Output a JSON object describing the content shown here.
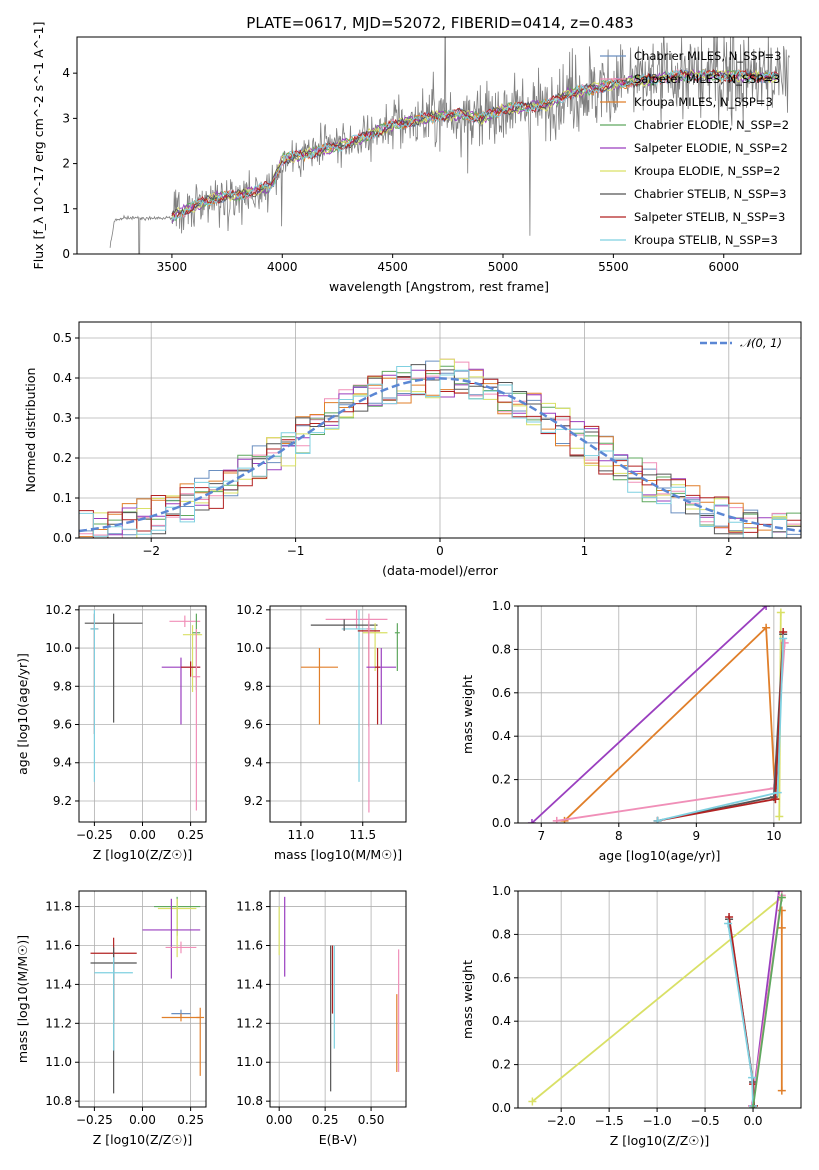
{
  "figure_title": "PLATE=0617, MJD=52072, FIBERID=0414, z=0.483",
  "chart_data": [
    {
      "id": "spectrum",
      "type": "line",
      "xlabel": "wavelength [Angstrom, rest frame]",
      "ylabel": "Flux [f_λ 10^-17 erg cm^-2 s^-1 A^-1]",
      "xlim": [
        3070,
        6350
      ],
      "ylim": [
        0,
        4.8
      ],
      "xticks": [
        3500,
        4000,
        4500,
        5000,
        5500,
        6000
      ],
      "yticks": [
        0,
        1,
        2,
        3,
        4
      ],
      "legend_position": "top-right",
      "series": [
        {
          "name": "Chabrier MILES, N_SSP=3",
          "color": "#6a8fc0"
        },
        {
          "name": "Salpeter MILES, N_SSP=3",
          "color": "#f08fb8"
        },
        {
          "name": "Kroupa MILES, N_SSP=3",
          "color": "#e07f2a"
        },
        {
          "name": "Chabrier ELODIE, N_SSP=2",
          "color": "#5fa85f"
        },
        {
          "name": "Salpeter ELODIE, N_SSP=2",
          "color": "#9a3fbf"
        },
        {
          "name": "Kroupa ELODIE, N_SSP=2",
          "color": "#d9e066"
        },
        {
          "name": "Chabrier STELIB, N_SSP=3",
          "color": "#555555"
        },
        {
          "name": "Salpeter STELIB, N_SSP=3",
          "color": "#b22222"
        },
        {
          "name": "Kroupa STELIB, N_SSP=3",
          "color": "#7fd0e0"
        }
      ],
      "observed_color": "#7f7f7f",
      "observed_range": [
        3220,
        6300
      ],
      "model_range": [
        3500,
        6250
      ],
      "continuum_nodes": {
        "x": [
          3220,
          3240,
          3300,
          3500,
          3550,
          3700,
          3800,
          3950,
          4000,
          4100,
          4300,
          4500,
          4700,
          4800,
          4900,
          5000,
          5200,
          5300,
          5500,
          5800,
          6000,
          6300
        ],
        "y": [
          0.15,
          0.75,
          0.8,
          0.8,
          0.95,
          1.25,
          1.3,
          1.5,
          2.1,
          2.2,
          2.45,
          2.85,
          3.05,
          3.1,
          3.0,
          3.2,
          3.3,
          3.55,
          3.75,
          3.95,
          3.95,
          3.9
        ]
      }
    },
    {
      "id": "residuals",
      "type": "line",
      "xlabel": "(data-model)/error",
      "ylabel": "Normed distribution",
      "xlim": [
        -2.5,
        2.5
      ],
      "ylim": [
        0,
        0.54
      ],
      "xticks": [
        -2,
        -1,
        0,
        1,
        2
      ],
      "yticks": [
        0.0,
        0.1,
        0.2,
        0.3,
        0.4,
        0.5
      ],
      "grid": true,
      "legend_position": "top-right",
      "gaussian": {
        "name": "𝒩(0, 1)",
        "color": "#5b87d4",
        "mean": 0,
        "sigma": 1
      },
      "hist_bin_width": 0.1
    },
    {
      "id": "age_vs_Z",
      "type": "scatter",
      "xlabel": "Z [log10(Z/Z☉)]",
      "ylabel": "age [log10(age/yr)]",
      "xlim": [
        -0.33,
        0.33
      ],
      "ylim": [
        9.09,
        10.22
      ],
      "xticks": [
        -0.25,
        0.0,
        0.25
      ],
      "yticks": [
        9.2,
        9.4,
        9.6,
        9.8,
        10.0,
        10.2
      ],
      "grid": true,
      "points": [
        {
          "x": -0.15,
          "y": 10.13,
          "xerr": 0.15,
          "yerr": [
            0.52,
            0.05
          ],
          "color": "#555555"
        },
        {
          "x": -0.25,
          "y": 10.1,
          "xerr": 0.02,
          "yerr": [
            0.55,
            0.08
          ],
          "color": "#b22222"
        },
        {
          "x": -0.25,
          "y": 10.1,
          "xerr": 0.02,
          "yerr": [
            0.8,
            0.1
          ],
          "color": "#7fd0e0"
        },
        {
          "x": 0.22,
          "y": 10.14,
          "xerr": 0.08,
          "yerr": [
            0.03,
            0.03
          ],
          "color": "#f08fb8"
        },
        {
          "x": 0.26,
          "y": 10.07,
          "xerr": 0.05,
          "yerr": [
            0.3,
            0.05
          ],
          "color": "#d9e066"
        },
        {
          "x": 0.28,
          "y": 10.08,
          "xerr": 0.02,
          "yerr": [
            0.3,
            0.1
          ],
          "color": "#5fa85f"
        },
        {
          "x": 0.2,
          "y": 9.9,
          "xerr": 0.1,
          "yerr": [
            0.3,
            0.05
          ],
          "color": "#9a3fbf"
        },
        {
          "x": 0.25,
          "y": 9.9,
          "xerr": 0.05,
          "yerr": [
            0.05,
            0.03
          ],
          "color": "#b22222"
        },
        {
          "x": 0.28,
          "y": 9.85,
          "xerr": 0.02,
          "yerr": [
            0.7,
            0.25
          ],
          "color": "#f08fb8"
        }
      ]
    },
    {
      "id": "age_vs_mass",
      "type": "scatter",
      "xlabel": "mass [log10(M/M☉)]",
      "ylabel": "",
      "xlim": [
        10.75,
        11.85
      ],
      "ylim": [
        9.09,
        10.22
      ],
      "xticks": [
        11.0,
        11.5
      ],
      "yticks": [
        9.2,
        9.4,
        9.6,
        9.8,
        10.0,
        10.2
      ],
      "grid": true,
      "points": [
        {
          "x": 11.45,
          "y": 10.15,
          "xerr": 0.25,
          "yerr": [
            0.05,
            0.05
          ],
          "color": "#f08fb8"
        },
        {
          "x": 11.47,
          "y": 10.1,
          "xerr": 0.14,
          "yerr": [
            0.8,
            0.1
          ],
          "color": "#7fd0e0"
        },
        {
          "x": 11.35,
          "y": 10.12,
          "xerr": 0.27,
          "yerr": [
            0.03,
            0.03
          ],
          "color": "#555555"
        },
        {
          "x": 11.6,
          "y": 10.08,
          "xerr": 0.1,
          "yerr": [
            0.2,
            0.05
          ],
          "color": "#d9e066"
        },
        {
          "x": 11.78,
          "y": 10.08,
          "xerr": 0.02,
          "yerr": [
            0.2,
            0.05
          ],
          "color": "#5fa85f"
        },
        {
          "x": 11.55,
          "y": 10.09,
          "xerr": 0.09,
          "yerr": [
            0.5,
            0.05
          ],
          "color": "#b22222"
        },
        {
          "x": 11.55,
          "y": 10.1,
          "xerr": 0.02,
          "yerr": [
            0.96,
            0.08
          ],
          "color": "#f08fb8"
        },
        {
          "x": 11.15,
          "y": 9.9,
          "xerr": 0.15,
          "yerr": [
            0.3,
            0.1
          ],
          "color": "#e07f2a"
        },
        {
          "x": 11.65,
          "y": 9.9,
          "xerr": 0.12,
          "yerr": [
            0.3,
            0.1
          ],
          "color": "#9a3fbf"
        },
        {
          "x": 11.62,
          "y": 9.9,
          "xerr": 0.02,
          "yerr": [
            0.3,
            0.1
          ],
          "color": "#b22222"
        }
      ]
    },
    {
      "id": "weight_vs_age",
      "type": "line",
      "xlabel": "age [log10(age/yr)]",
      "ylabel": "mass weight",
      "xlim": [
        6.7,
        10.35
      ],
      "ylim": [
        0,
        1.0
      ],
      "xticks": [
        7,
        8,
        9,
        10
      ],
      "yticks": [
        0.0,
        0.2,
        0.4,
        0.6,
        0.8,
        1.0
      ],
      "grid": true,
      "series": [
        {
          "color": "#9a3fbf",
          "x": [
            6.88,
            9.9
          ],
          "y": [
            0.0,
            1.0
          ]
        },
        {
          "color": "#e07f2a",
          "x": [
            7.3,
            9.9,
            10.02
          ],
          "y": [
            0.01,
            0.9,
            0.11
          ]
        },
        {
          "color": "#d9e066",
          "x": [
            10.07,
            10.09
          ],
          "y": [
            0.03,
            0.97
          ]
        },
        {
          "color": "#f08fb8",
          "x": [
            7.2,
            10.0,
            10.14
          ],
          "y": [
            0.01,
            0.16,
            0.83
          ]
        },
        {
          "color": "#555555",
          "x": [
            8.5,
            10.0,
            10.12
          ],
          "y": [
            0.01,
            0.12,
            0.87
          ]
        },
        {
          "color": "#b22222",
          "x": [
            8.5,
            10.02,
            10.12
          ],
          "y": [
            0.01,
            0.11,
            0.88
          ]
        },
        {
          "color": "#7fd0e0",
          "x": [
            8.5,
            10.05,
            10.12
          ],
          "y": [
            0.01,
            0.14,
            0.85
          ]
        }
      ]
    },
    {
      "id": "mass_vs_Z",
      "type": "scatter",
      "xlabel": "Z [log10(Z/Z☉)]",
      "ylabel": "mass [log10(M/M☉)]",
      "xlim": [
        -0.33,
        0.33
      ],
      "ylim": [
        10.77,
        11.88
      ],
      "xticks": [
        -0.25,
        0.0,
        0.25
      ],
      "yticks": [
        10.8,
        11.0,
        11.2,
        11.4,
        11.6,
        11.8
      ],
      "grid": true,
      "points": [
        {
          "x": 0.18,
          "y": 11.8,
          "xerr": 0.12,
          "yerr": [
            0.15,
            0.05
          ],
          "color": "#5fa85f"
        },
        {
          "x": 0.18,
          "y": 11.79,
          "xerr": 0.1,
          "yerr": [
            0.25,
            0.05
          ],
          "color": "#d9e066"
        },
        {
          "x": 0.15,
          "y": 11.68,
          "xerr": 0.15,
          "yerr": [
            0.25,
            0.16
          ],
          "color": "#9a3fbf"
        },
        {
          "x": 0.2,
          "y": 11.59,
          "xerr": 0.08,
          "yerr": [
            0.03,
            0.03
          ],
          "color": "#f08fb8"
        },
        {
          "x": -0.15,
          "y": 11.56,
          "xerr": 0.12,
          "yerr": [
            0.35,
            0.08
          ],
          "color": "#b22222"
        },
        {
          "x": -0.15,
          "y": 11.51,
          "xerr": 0.12,
          "yerr": [
            0.67,
            0.08
          ],
          "color": "#555555"
        },
        {
          "x": -0.15,
          "y": 11.46,
          "xerr": 0.1,
          "yerr": [
            0.4,
            0.08
          ],
          "color": "#7fd0e0"
        },
        {
          "x": 0.2,
          "y": 11.25,
          "xerr": 0.05,
          "yerr": [
            0.02,
            0.02
          ],
          "color": "#6a8fc0"
        },
        {
          "x": 0.2,
          "y": 11.23,
          "xerr": 0.1,
          "yerr": [
            0.02,
            0.02
          ],
          "color": "#e07f2a"
        },
        {
          "x": 0.3,
          "y": 11.23,
          "xerr": 0.02,
          "yerr": [
            0.3,
            0.05
          ],
          "color": "#e07f2a"
        }
      ]
    },
    {
      "id": "mass_vs_EBV",
      "type": "scatter",
      "xlabel": "E(B-V)",
      "ylabel": "",
      "xlim": [
        -0.05,
        0.69
      ],
      "ylim": [
        10.77,
        11.88
      ],
      "xticks": [
        0.0,
        0.25,
        0.5
      ],
      "yticks": [
        10.8,
        11.0,
        11.2,
        11.4,
        11.6,
        11.8
      ],
      "grid": true,
      "points": [
        {
          "x": 0.0,
          "y": 11.75,
          "yerr": [
            0.2,
            0.05
          ],
          "color": "#d9e066"
        },
        {
          "x": 0.03,
          "y": 11.7,
          "yerr": [
            0.26,
            0.15
          ],
          "color": "#9a3fbf"
        },
        {
          "x": 0.28,
          "y": 11.55,
          "yerr": [
            0.7,
            0.05
          ],
          "color": "#555555"
        },
        {
          "x": 0.29,
          "y": 11.55,
          "yerr": [
            0.3,
            0.05
          ],
          "color": "#b22222"
        },
        {
          "x": 0.3,
          "y": 11.45,
          "yerr": [
            0.38,
            0.15
          ],
          "color": "#7fd0e0"
        },
        {
          "x": 0.64,
          "y": 11.3,
          "yerr": [
            0.35,
            0.05
          ],
          "color": "#e07f2a"
        },
        {
          "x": 0.65,
          "y": 11.35,
          "yerr": [
            0.4,
            0.23
          ],
          "color": "#f08fb8"
        }
      ]
    },
    {
      "id": "weight_vs_Z",
      "type": "line",
      "xlabel": "Z [log10(Z/Z☉)]",
      "ylabel": "mass weight",
      "xlim": [
        -2.45,
        0.5
      ],
      "ylim": [
        0,
        1.0
      ],
      "xticks": [
        -2.0,
        -1.5,
        -1.0,
        -0.5,
        0.0
      ],
      "yticks": [
        0.0,
        0.2,
        0.4,
        0.6,
        0.8,
        1.0
      ],
      "grid": true,
      "series": [
        {
          "color": "#d9e066",
          "x": [
            -2.3,
            0.3
          ],
          "y": [
            0.03,
            0.97
          ]
        },
        {
          "color": "#9a3fbf",
          "x": [
            -0.01,
            0.27
          ],
          "y": [
            0.01,
            1.0
          ]
        },
        {
          "color": "#e07f2a",
          "x": [
            0.3,
            0.3,
            0.3
          ],
          "y": [
            0.08,
            0.83,
            0.91
          ]
        },
        {
          "color": "#f08fb8",
          "x": [
            -0.01,
            0.3
          ],
          "y": [
            0.01,
            0.98
          ]
        },
        {
          "color": "#555555",
          "x": [
            -0.25,
            0.0,
            0.01
          ],
          "y": [
            0.87,
            0.12,
            0.01
          ]
        },
        {
          "color": "#b22222",
          "x": [
            -0.25,
            0.0,
            0.01
          ],
          "y": [
            0.88,
            0.11,
            0.01
          ]
        },
        {
          "color": "#7fd0e0",
          "x": [
            -0.26,
            -0.01,
            0.0
          ],
          "y": [
            0.85,
            0.14,
            0.01
          ]
        },
        {
          "color": "#5fa85f",
          "x": [
            0.0,
            0.3
          ],
          "y": [
            0.0,
            0.97
          ]
        }
      ]
    }
  ]
}
